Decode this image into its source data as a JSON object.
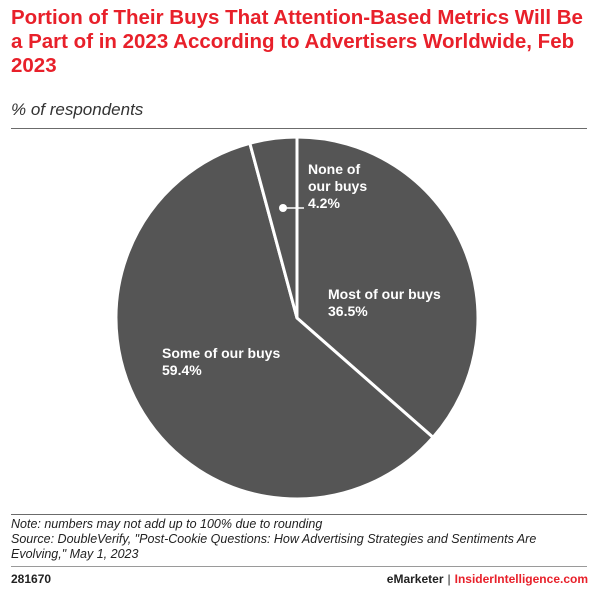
{
  "title": "Portion of Their Buys That Attention-Based Metrics Will Be a Part of in 2023 According to Advertisers Worldwide, Feb 2023",
  "subtitle": "% of respondents",
  "chart_data": {
    "type": "pie",
    "title": "Portion of Their Buys That Attention-Based Metrics Will Be a Part of in 2023 According to Advertisers Worldwide, Feb 2023",
    "subtitle": "% of respondents",
    "categories": [
      "Most of our buys",
      "Some of our buys",
      "None of our buys"
    ],
    "values": [
      36.5,
      59.4,
      4.2
    ],
    "labels": [
      "36.5%",
      "59.4%",
      "4.2%"
    ],
    "color": "#555555",
    "separator_color": "#ffffff"
  },
  "notes": {
    "note": "Note: numbers may not add up to 100% due to rounding",
    "source": "Source: DoubleVerify, \"Post-Cookie Questions: How Advertising Strategies and Sentiments Are Evolving,\" May 1, 2023"
  },
  "footer": {
    "chart_id": "281670",
    "brand_left": "eMarketer",
    "separator": "|",
    "brand_right": "InsiderIntelligence.com"
  }
}
